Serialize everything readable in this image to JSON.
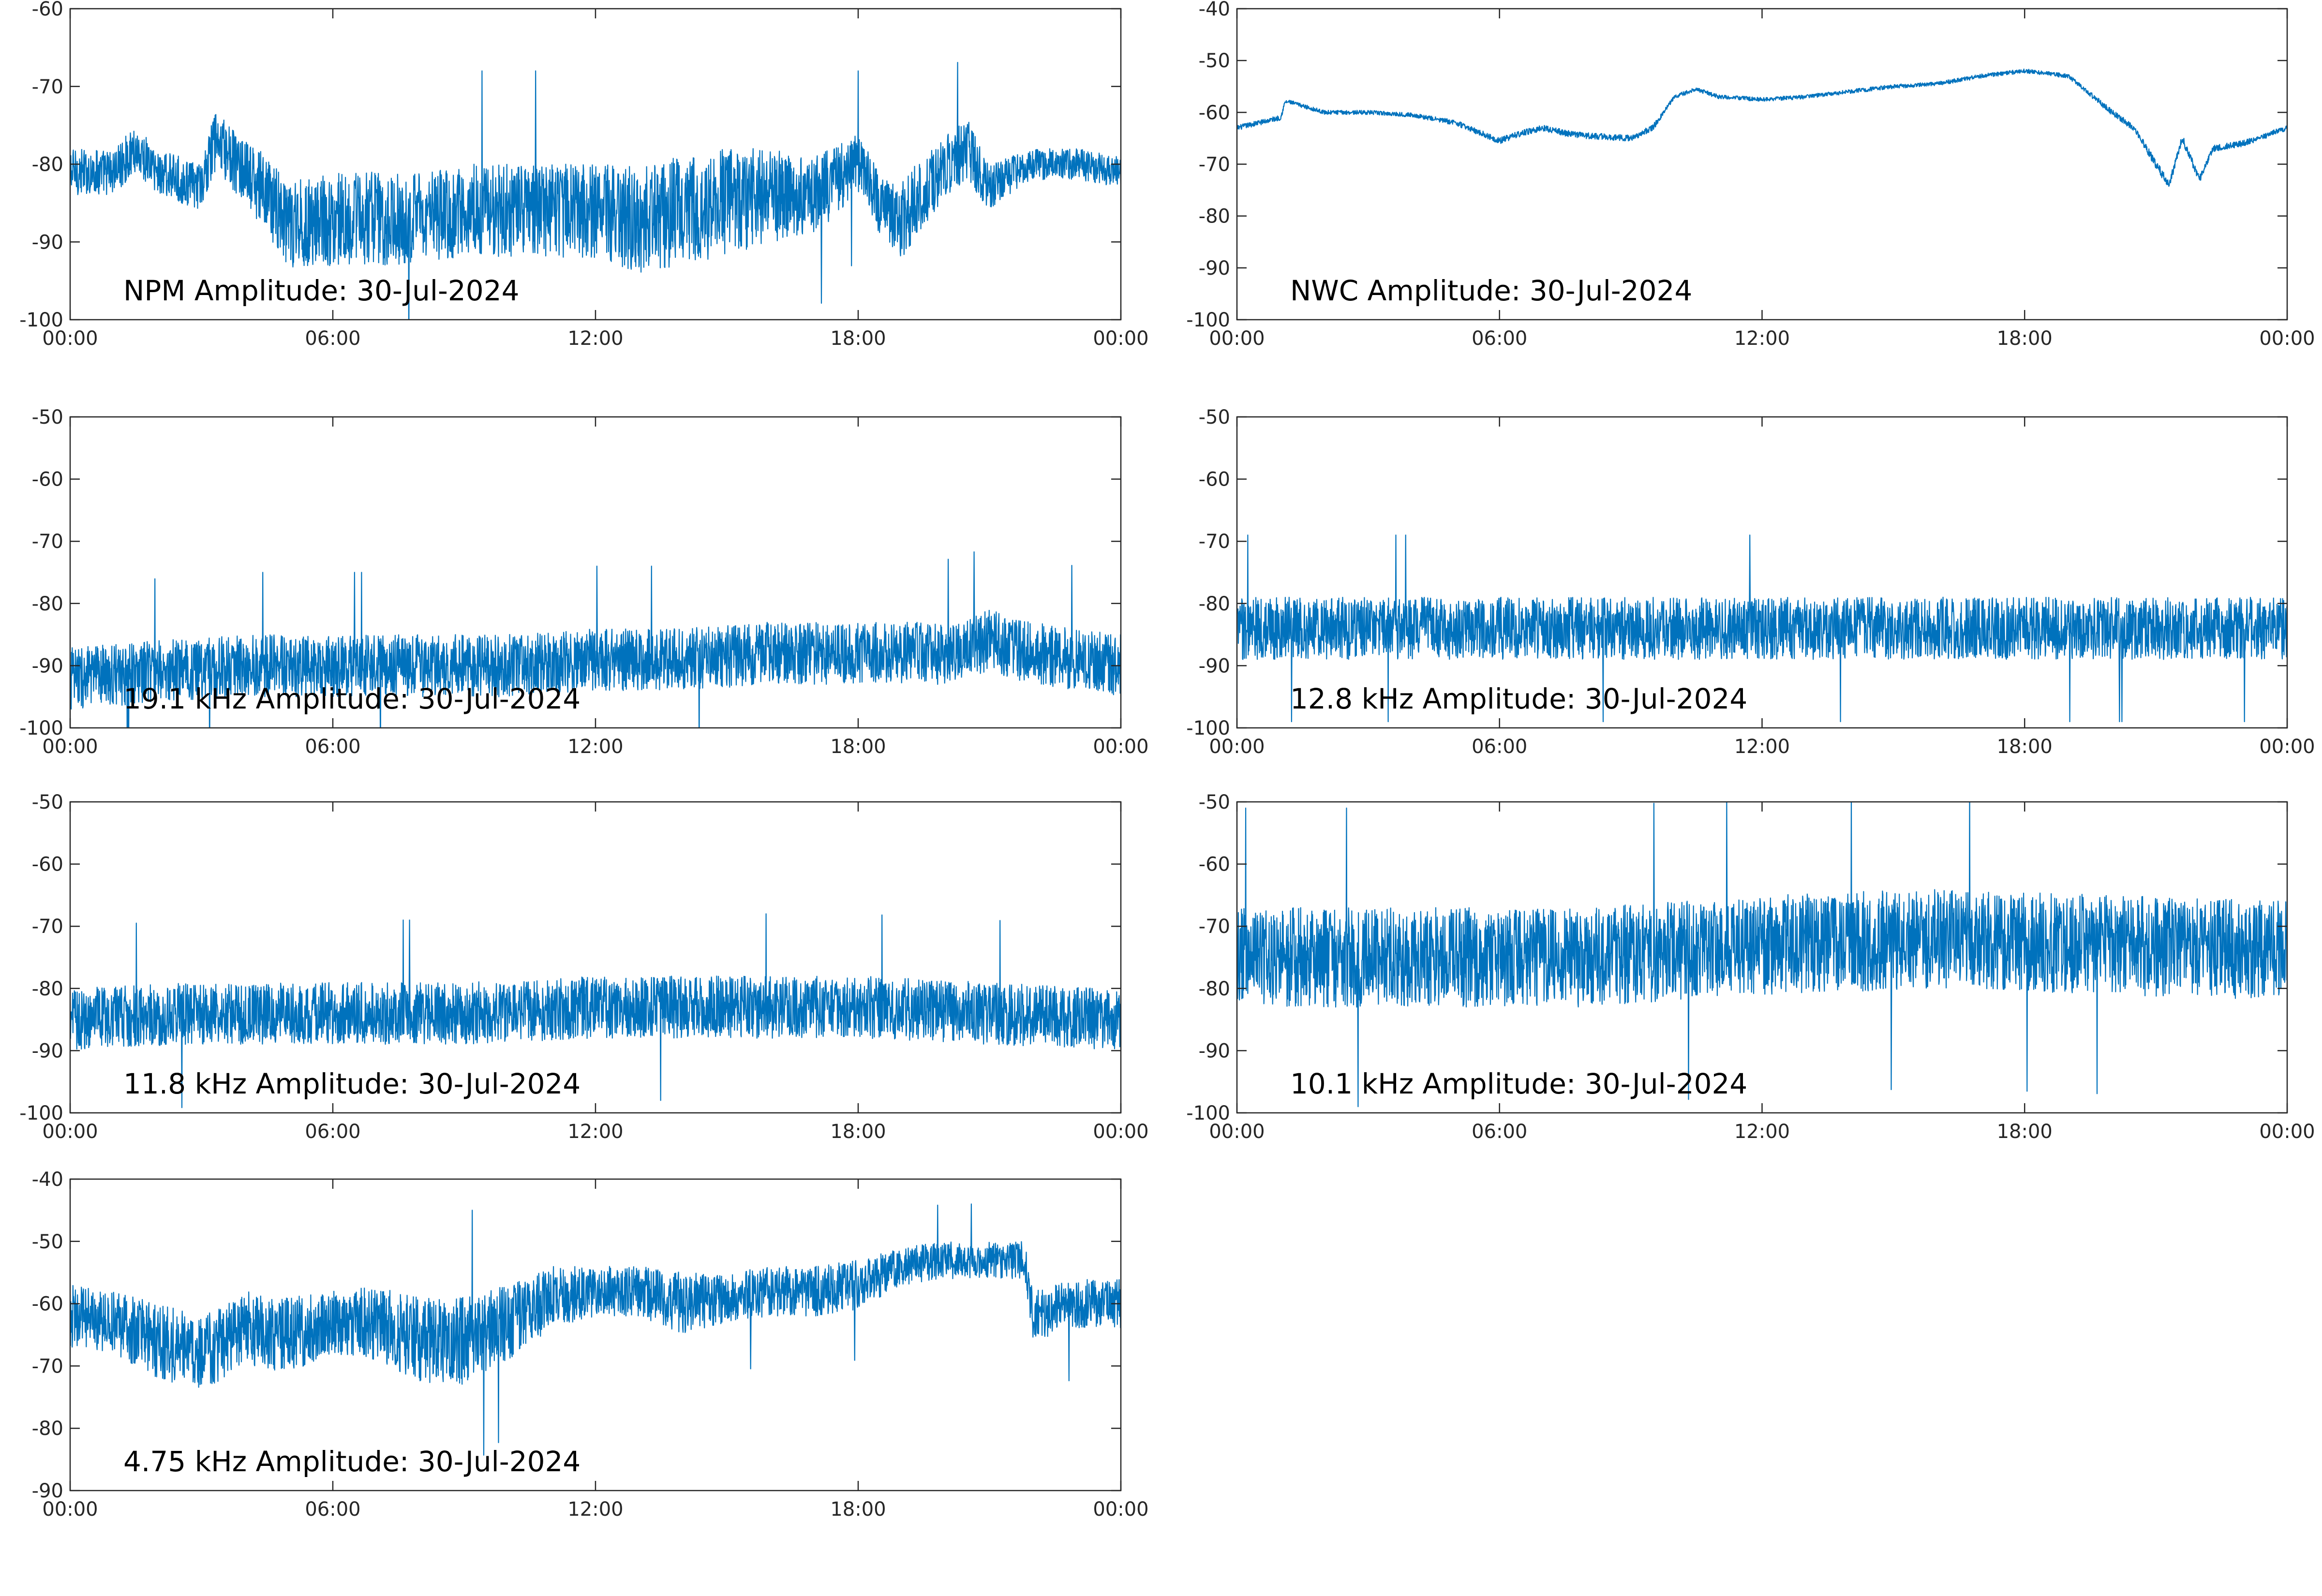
{
  "figure": {
    "background": "#ffffff",
    "series_color": "#0072BD"
  },
  "chart_data": [
    {
      "type": "line",
      "title": "NPM Amplitude: 30-Jul-2024",
      "x_ticks": [
        "00:00",
        "06:00",
        "12:00",
        "18:00",
        "00:00"
      ],
      "xlim": [
        0,
        24
      ],
      "ylim": [
        -100,
        -60
      ],
      "y_ticks": [
        "-60",
        "-70",
        "-80",
        "-90",
        "-100"
      ],
      "y_tick_values": [
        -60,
        -70,
        -80,
        -90,
        -100
      ],
      "series": [
        {
          "x": [
            0,
            1,
            1.5,
            2,
            3,
            3.3,
            3.8,
            4.5,
            5,
            6,
            7,
            8,
            9,
            10,
            11,
            12,
            13,
            14,
            15,
            16,
            17,
            18,
            18.5,
            19,
            20,
            20.5,
            21,
            22,
            23,
            24
          ],
          "values": [
            -81,
            -81,
            -78,
            -81,
            -83,
            -77,
            -80,
            -84,
            -88,
            -87,
            -87,
            -87,
            -86,
            -86,
            -86,
            -86,
            -87,
            -86,
            -85,
            -84,
            -84,
            -80,
            -85,
            -87,
            -80,
            -78,
            -83,
            -80,
            -80,
            -81
          ],
          "noise": [
            3,
            3,
            3,
            3,
            3,
            4,
            4,
            5,
            6,
            6,
            6,
            6,
            6,
            6,
            6,
            6,
            7,
            7,
            7,
            6,
            5,
            4,
            4,
            5,
            4,
            4,
            3,
            2,
            2,
            2
          ]
        }
      ]
    },
    {
      "type": "line",
      "title": "NWC Amplitude: 30-Jul-2024",
      "x_ticks": [
        "00:00",
        "06:00",
        "12:00",
        "18:00",
        "00:00"
      ],
      "xlim": [
        0,
        24
      ],
      "ylim": [
        -100,
        -40
      ],
      "y_ticks": [
        "-40",
        "-50",
        "-60",
        "-70",
        "-80",
        "-90",
        "-100"
      ],
      "y_tick_values": [
        -40,
        -50,
        -60,
        -70,
        -80,
        -90,
        -100
      ],
      "series": [
        {
          "x": [
            0,
            1,
            1.1,
            1.2,
            2,
            3,
            4,
            5,
            6,
            6.5,
            7,
            7.5,
            8,
            9,
            9.5,
            10,
            10.5,
            11,
            12,
            13,
            14,
            15,
            16,
            17,
            18,
            19,
            20,
            20.5,
            21,
            21.3,
            21.6,
            22,
            22.3,
            23,
            24
          ],
          "values": [
            -63,
            -61,
            -58,
            -58,
            -60,
            -60,
            -60.5,
            -62,
            -65.5,
            -64,
            -63,
            -64,
            -64.5,
            -65,
            -63,
            -57,
            -55.5,
            -57,
            -57.5,
            -57,
            -56,
            -55,
            -54.5,
            -53,
            -52,
            -53,
            -60,
            -63,
            -70,
            -74,
            -65,
            -73,
            -67,
            -66,
            -63
          ],
          "noise": [
            0.5,
            0.5,
            0.4,
            0.4,
            0.4,
            0.4,
            0.4,
            0.5,
            0.6,
            0.6,
            0.6,
            0.6,
            0.6,
            0.6,
            0.6,
            0.4,
            0.4,
            0.4,
            0.4,
            0.4,
            0.4,
            0.4,
            0.4,
            0.4,
            0.4,
            0.4,
            0.6,
            0.6,
            0.8,
            0.8,
            0.8,
            0.8,
            0.6,
            0.6,
            0.5
          ]
        }
      ]
    },
    {
      "type": "line",
      "title": "19.1 kHz Amplitude: 30-Jul-2024",
      "x_ticks": [
        "00:00",
        "06:00",
        "12:00",
        "18:00",
        "00:00"
      ],
      "xlim": [
        0,
        24
      ],
      "ylim": [
        -100,
        -50
      ],
      "y_ticks": [
        "-50",
        "-60",
        "-70",
        "-80",
        "-90",
        "-100"
      ],
      "y_tick_values": [
        -50,
        -60,
        -70,
        -80,
        -90,
        -100
      ],
      "series": [
        {
          "x": [
            0,
            2,
            4,
            6,
            8,
            10,
            12,
            14,
            16,
            18,
            20,
            21,
            22,
            24
          ],
          "values": [
            -92,
            -91,
            -90,
            -90,
            -90,
            -90,
            -89,
            -89,
            -88,
            -88,
            -88,
            -86,
            -88,
            -90
          ],
          "noise": [
            5,
            5,
            5,
            5,
            5,
            5,
            5,
            5,
            5,
            5,
            5,
            5,
            5,
            5
          ]
        }
      ]
    },
    {
      "type": "line",
      "title": "12.8 kHz Amplitude: 30-Jul-2024",
      "x_ticks": [
        "00:00",
        "06:00",
        "12:00",
        "18:00",
        "00:00"
      ],
      "xlim": [
        0,
        24
      ],
      "ylim": [
        -100,
        -50
      ],
      "y_ticks": [
        "-50",
        "-60",
        "-70",
        "-80",
        "-90",
        "-100"
      ],
      "y_tick_values": [
        -50,
        -60,
        -70,
        -80,
        -90,
        -100
      ],
      "series": [
        {
          "x": [
            0,
            3,
            5,
            6,
            9,
            12,
            15,
            18,
            21,
            24
          ],
          "values": [
            -84,
            -84,
            -84,
            -84,
            -84,
            -84,
            -84,
            -84,
            -84,
            -84
          ],
          "noise": [
            5,
            5,
            5,
            5,
            5,
            5,
            5,
            5,
            5,
            5
          ]
        }
      ]
    },
    {
      "type": "line",
      "title": "11.8 kHz Amplitude: 30-Jul-2024",
      "x_ticks": [
        "00:00",
        "06:00",
        "12:00",
        "18:00",
        "00:00"
      ],
      "xlim": [
        0,
        24
      ],
      "ylim": [
        -100,
        -50
      ],
      "y_ticks": [
        "-50",
        "-60",
        "-70",
        "-80",
        "-90",
        "-100"
      ],
      "y_tick_values": [
        -50,
        -60,
        -70,
        -80,
        -90,
        -100
      ],
      "series": [
        {
          "x": [
            0,
            3,
            6,
            9,
            12,
            15,
            18,
            21,
            24
          ],
          "values": [
            -85,
            -84,
            -84,
            -84,
            -83,
            -83,
            -83,
            -84,
            -85
          ],
          "noise": [
            5,
            5,
            5,
            5,
            5,
            5,
            5,
            5,
            5
          ]
        }
      ]
    },
    {
      "type": "line",
      "title": "10.1 kHz Amplitude: 30-Jul-2024",
      "x_ticks": [
        "00:00",
        "06:00",
        "12:00",
        "18:00",
        "00:00"
      ],
      "xlim": [
        0,
        24
      ],
      "ylim": [
        -100,
        -50
      ],
      "y_ticks": [
        "-50",
        "-60",
        "-70",
        "-80",
        "-90",
        "-100"
      ],
      "y_tick_values": [
        -50,
        -60,
        -70,
        -80,
        -90,
        -100
      ],
      "series": [
        {
          "x": [
            0,
            4,
            8,
            12,
            16,
            20,
            24
          ],
          "values": [
            -75,
            -75,
            -75,
            -73,
            -72,
            -73,
            -74
          ],
          "noise": [
            8,
            8,
            8,
            8,
            8,
            8,
            8
          ]
        }
      ]
    },
    {
      "type": "line",
      "title": "4.75 kHz Amplitude: 30-Jul-2024",
      "x_ticks": [
        "00:00",
        "06:00",
        "12:00",
        "18:00",
        "00:00"
      ],
      "xlim": [
        0,
        24
      ],
      "ylim": [
        -90,
        -40
      ],
      "y_ticks": [
        "-40",
        "-50",
        "-60",
        "-70",
        "-80",
        "-90"
      ],
      "y_tick_values": [
        -40,
        -50,
        -60,
        -70,
        -80,
        -90
      ],
      "series": [
        {
          "x": [
            0,
            1,
            2,
            3,
            4,
            5,
            6,
            7,
            8,
            9,
            10,
            11,
            12,
            13,
            14,
            15,
            16,
            17,
            18,
            19,
            20,
            21,
            21.8,
            22,
            23,
            24
          ],
          "values": [
            -62,
            -63,
            -66,
            -68,
            -64,
            -65,
            -63,
            -63,
            -66,
            -66,
            -63,
            -59,
            -58,
            -58,
            -60,
            -59,
            -58,
            -58,
            -57,
            -54,
            -53,
            -53,
            -53,
            -62,
            -60,
            -60
          ],
          "noise": [
            5,
            5,
            6,
            6,
            6,
            6,
            5,
            6,
            7,
            7,
            6,
            5,
            4,
            4,
            5,
            4,
            4,
            4,
            4,
            3,
            3,
            3,
            3,
            4,
            4,
            4
          ]
        }
      ]
    }
  ]
}
